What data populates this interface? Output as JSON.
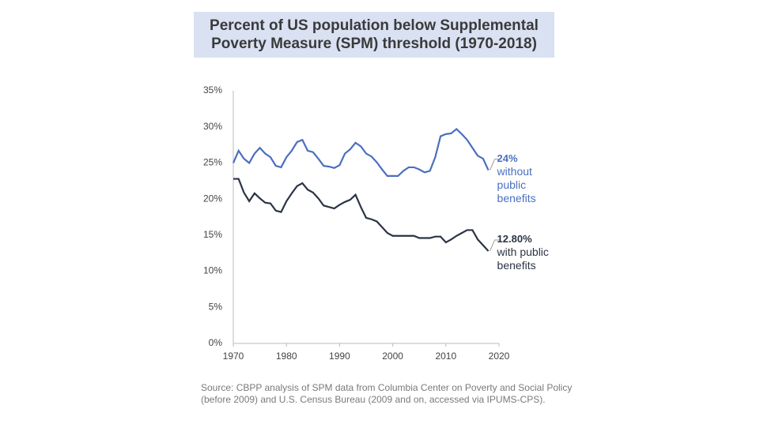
{
  "chart_data": {
    "type": "line",
    "title": "Percent of US population below Supplemental Poverty Measure (SPM) threshold (1970-2018)",
    "x": [
      1970,
      1971,
      1972,
      1973,
      1974,
      1975,
      1976,
      1977,
      1978,
      1979,
      1980,
      1981,
      1982,
      1983,
      1984,
      1985,
      1986,
      1987,
      1988,
      1989,
      1990,
      1991,
      1992,
      1993,
      1994,
      1995,
      1996,
      1997,
      1998,
      1999,
      2000,
      2001,
      2002,
      2003,
      2004,
      2005,
      2006,
      2007,
      2008,
      2009,
      2010,
      2011,
      2012,
      2013,
      2014,
      2015,
      2016,
      2017,
      2018
    ],
    "series": [
      {
        "name": "without public benefits",
        "color": "#4a6fc0",
        "end_label": "24%",
        "values": [
          25,
          26.7,
          25.6,
          25,
          26.3,
          27.1,
          26.3,
          25.8,
          24.6,
          24.4,
          25.8,
          26.7,
          27.9,
          28.2,
          26.7,
          26.5,
          25.6,
          24.6,
          24.5,
          24.3,
          24.7,
          26.3,
          26.9,
          27.8,
          27.3,
          26.3,
          25.9,
          25.1,
          24.1,
          23.2,
          23.2,
          23.2,
          23.9,
          24.4,
          24.4,
          24.1,
          23.7,
          23.9,
          25.8,
          28.7,
          29,
          29.1,
          29.7,
          29,
          28.2,
          27.1,
          26,
          25.6,
          24
        ]
      },
      {
        "name": "with public benefits",
        "color": "#2b3445",
        "end_label": "12.80%",
        "values": [
          22.8,
          22.8,
          20.9,
          19.7,
          20.8,
          20.1,
          19.5,
          19.4,
          18.4,
          18.2,
          19.7,
          20.8,
          21.8,
          22.2,
          21.3,
          20.9,
          20.1,
          19.1,
          18.9,
          18.7,
          19.2,
          19.6,
          19.9,
          20.6,
          18.9,
          17.4,
          17.2,
          16.9,
          16.1,
          15.3,
          14.9,
          14.9,
          14.9,
          14.9,
          14.9,
          14.6,
          14.6,
          14.6,
          14.8,
          14.8,
          14,
          14.4,
          14.9,
          15.3,
          15.7,
          15.7,
          14.4,
          13.6,
          12.8
        ]
      }
    ],
    "xlim": [
      1970,
      2020
    ],
    "xticks": [
      1970,
      1980,
      1990,
      2000,
      2010,
      2020
    ],
    "ylim": [
      0,
      35
    ],
    "yticks": [
      {
        "value": 0,
        "label": "0%"
      },
      {
        "value": 5,
        "label": "5%"
      },
      {
        "value": 10,
        "label": "10%"
      },
      {
        "value": 15,
        "label": "15%"
      },
      {
        "value": 20,
        "label": "20%"
      },
      {
        "value": 25,
        "label": "25%"
      },
      {
        "value": 30,
        "label": "30%"
      },
      {
        "value": 35,
        "label": "35%"
      }
    ],
    "source": "Source: CBPP analysis of SPM data from Columbia Center on Poverty and Social Policy (before 2009) and U.S. Census Bureau (2009 and on, accessed via IPUMS-CPS)."
  }
}
